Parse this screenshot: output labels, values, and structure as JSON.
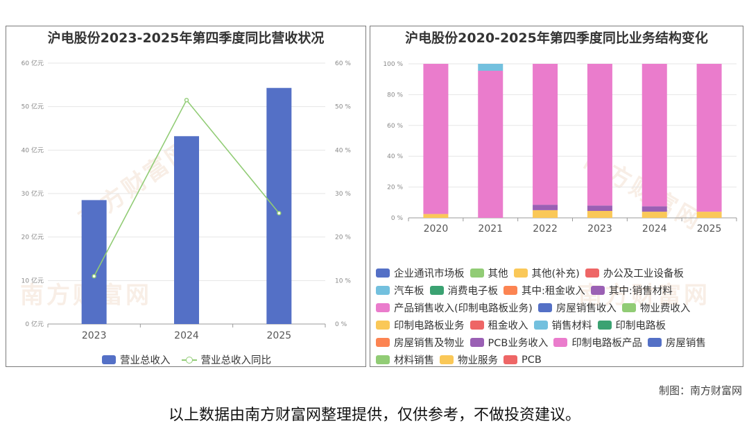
{
  "credit": "制图：南方财富网",
  "disclaimer": "以上数据由南方财富网整理提供，仅供参考，不做投资建议。",
  "watermark_text": "南方财富网",
  "chart_data": [
    {
      "type": "bar",
      "title": "沪电股份2023-2025年第四季度同比营收状况",
      "categories": [
        "2023",
        "2024",
        "2025"
      ],
      "series": [
        {
          "name": "营业总收入",
          "type": "bar",
          "values": [
            28.5,
            43.2,
            54.3
          ],
          "color": "#5470c6",
          "axis": "left"
        },
        {
          "name": "营业总收入同比",
          "type": "line",
          "values": [
            11.0,
            51.5,
            25.5
          ],
          "color": "#91cc75",
          "axis": "right"
        }
      ],
      "y_left": {
        "ylim": [
          0,
          60
        ],
        "ticks": [
          "0 亿元",
          "10 亿元",
          "20 亿元",
          "30 亿元",
          "40 亿元",
          "50 亿元",
          "60 亿元"
        ]
      },
      "y_right": {
        "ylim": [
          0,
          60
        ],
        "ticks": [
          "0 %",
          "10 %",
          "20 %",
          "30 %",
          "40 %",
          "50 %",
          "60 %"
        ]
      }
    },
    {
      "type": "bar",
      "stacked": true,
      "normalized": true,
      "title": "沪电股份2020-2025年第四季度同比业务结构变化",
      "categories": [
        "2020",
        "2021",
        "2022",
        "2023",
        "2024",
        "2025"
      ],
      "y_ticks": [
        "0 %",
        "20 %",
        "40 %",
        "60 %",
        "80 %",
        "100 %"
      ],
      "ylim": [
        0,
        100
      ],
      "series": [
        {
          "name": "企业通讯市场板",
          "color": "#5470c6",
          "values": [
            0,
            0,
            0,
            0,
            0,
            0
          ]
        },
        {
          "name": "其他",
          "color": "#91cc75",
          "values": [
            0,
            0,
            0,
            0,
            0,
            0
          ]
        },
        {
          "name": "其他(补充)",
          "color": "#fac858",
          "values": [
            0,
            0,
            0,
            0,
            0,
            0
          ]
        },
        {
          "name": "办公及工业设备板",
          "color": "#ee6666",
          "values": [
            0,
            0,
            0,
            0,
            0,
            0
          ]
        },
        {
          "name": "汽车板",
          "color": "#73c0de",
          "values": [
            0,
            4.5,
            0,
            0,
            0,
            0
          ]
        },
        {
          "name": "消费电子板",
          "color": "#3ba272",
          "values": [
            0,
            0,
            0,
            0,
            0,
            0
          ]
        },
        {
          "name": "其中:租金收入",
          "color": "#fc8452",
          "values": [
            0,
            0,
            0,
            0,
            0,
            0
          ]
        },
        {
          "name": "其中:销售材料",
          "color": "#9a60b4",
          "values": [
            0,
            0,
            3.5,
            3.5,
            3.5,
            0
          ]
        },
        {
          "name": "产品销售收入(印制电路板业务)",
          "color": "#ea7ccc",
          "values": [
            97.5,
            95.5,
            91.5,
            92.0,
            92.5,
            96.0
          ]
        },
        {
          "name": "房屋销售收入",
          "color": "#5470c6",
          "values": [
            0,
            0,
            0,
            0,
            0,
            0
          ]
        },
        {
          "name": "物业费收入",
          "color": "#91cc75",
          "values": [
            0,
            0,
            0,
            0,
            0,
            0
          ]
        },
        {
          "name": "印制电路板业务",
          "color": "#fac858",
          "values": [
            2.5,
            0,
            5.0,
            4.5,
            4.0,
            4.0
          ]
        },
        {
          "name": "租金收入",
          "color": "#ee6666",
          "values": [
            0,
            0,
            0,
            0,
            0,
            0
          ]
        },
        {
          "name": "销售材料",
          "color": "#73c0de",
          "values": [
            0,
            0,
            0,
            0,
            0,
            0
          ]
        },
        {
          "name": "印制电路板",
          "color": "#3ba272",
          "values": [
            0,
            0,
            0,
            0,
            0,
            0
          ]
        },
        {
          "name": "房屋销售及物业",
          "color": "#fc8452",
          "values": [
            0,
            0,
            0,
            0,
            0,
            0
          ]
        },
        {
          "name": "PCB业务收入",
          "color": "#9a60b4",
          "values": [
            0,
            0,
            0,
            0,
            0,
            0
          ]
        },
        {
          "name": "印制电路板产品",
          "color": "#ea7ccc",
          "values": [
            0,
            0,
            0,
            0,
            0,
            0
          ]
        },
        {
          "name": "房屋销售",
          "color": "#5470c6",
          "values": [
            0,
            0,
            0,
            0,
            0,
            0
          ]
        },
        {
          "name": "材料销售",
          "color": "#91cc75",
          "values": [
            0,
            0,
            0,
            0,
            0,
            0
          ]
        },
        {
          "name": "物业服务",
          "color": "#fac858",
          "values": [
            0,
            0,
            0,
            0,
            0,
            0
          ]
        },
        {
          "name": "PCB",
          "color": "#ee6666",
          "values": [
            0,
            0,
            0,
            0,
            0,
            0
          ]
        }
      ],
      "stack_order": [
        11,
        7,
        8,
        4
      ]
    }
  ]
}
